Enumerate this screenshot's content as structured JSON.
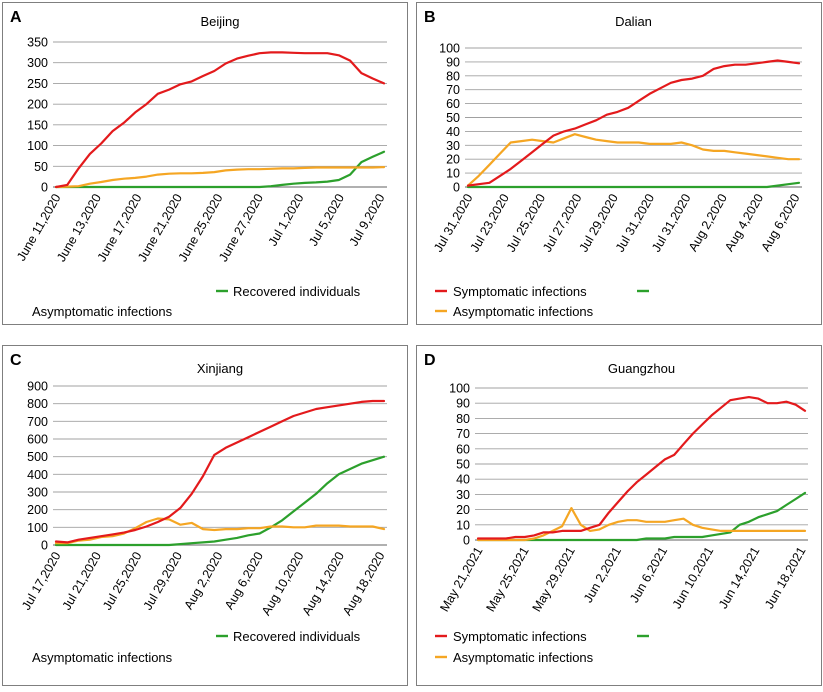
{
  "legend_text": {
    "symptomatic": "Symptomatic infections",
    "asymptomatic": "Asymptomatic infections",
    "recovered": "Recovered  individuals"
  },
  "colors": {
    "symptomatic": "#e31a1c",
    "asymptomatic": "#f5a623",
    "recovered": "#2ca02c",
    "grid": "#a0a0a0",
    "border": "#7f7f7f"
  },
  "chart_data": [
    {
      "type": "line",
      "panel_label": "A",
      "title": "Beijing",
      "ylim": [
        0,
        350
      ],
      "yticks": [
        "0",
        "50",
        "100",
        "150",
        "200",
        "250",
        "300",
        "350"
      ],
      "xtick_labels": [
        "June 11,2020",
        "June 13,2020",
        "June 17,2020",
        "June 21,2020",
        "June 25,2020",
        "June 27,2020",
        "Jul 1,2020",
        "Jul 5,2020",
        "Jul 9,2020"
      ],
      "series": [
        {
          "name": "Symptomatic infections",
          "key": "symptomatic",
          "values": [
            0,
            5,
            45,
            80,
            105,
            135,
            155,
            180,
            200,
            225,
            235,
            248,
            255,
            268,
            280,
            298,
            310,
            317,
            323,
            325,
            325,
            324,
            323,
            323,
            323,
            318,
            305,
            275,
            262,
            250
          ]
        },
        {
          "name": "Asymptomatic infections",
          "key": "asymptomatic",
          "values": [
            0,
            1,
            2,
            8,
            12,
            17,
            20,
            22,
            25,
            30,
            32,
            33,
            33,
            34,
            36,
            40,
            42,
            43,
            43,
            44,
            45,
            45,
            46,
            47,
            47,
            47,
            47,
            47,
            47,
            48
          ]
        },
        {
          "name": "Recovered  individuals",
          "key": "recovered",
          "values": [
            0,
            0,
            0,
            0,
            0,
            0,
            0,
            0,
            0,
            0,
            0,
            0,
            0,
            0,
            0,
            0,
            0,
            0,
            0,
            2,
            5,
            8,
            10,
            11,
            13,
            17,
            30,
            60,
            73,
            85
          ]
        }
      ]
    },
    {
      "type": "line",
      "panel_label": "B",
      "title": "Dalian",
      "ylim": [
        0,
        100
      ],
      "yticks": [
        "0",
        "10",
        "20",
        "30",
        "40",
        "50",
        "60",
        "70",
        "80",
        "90",
        "100"
      ],
      "xtick_labels": [
        "Jul 31,2020",
        "Jul 23,2020",
        "Jul 25,2020",
        "Jul 27,2020",
        "Jul 29,2020",
        "Jul 31,2020",
        "Jul 31,2020",
        "Aug 2,2020",
        "Aug 4,2020",
        "Aug 6,2020"
      ],
      "series": [
        {
          "name": "Symptomatic infections",
          "key": "symptomatic",
          "values": [
            1,
            2,
            3,
            8,
            13,
            19,
            25,
            31,
            37,
            40,
            42,
            45,
            48,
            52,
            54,
            57,
            62,
            67,
            71,
            75,
            77,
            78,
            80,
            85,
            87,
            88,
            88,
            89,
            90,
            91,
            90,
            89
          ]
        },
        {
          "name": "Asymptomatic infections",
          "key": "asymptomatic",
          "values": [
            1,
            8,
            16,
            24,
            32,
            33,
            34,
            33,
            32,
            35,
            38,
            36,
            34,
            33,
            32,
            32,
            32,
            31,
            31,
            31,
            32,
            30,
            27,
            26,
            26,
            25,
            24,
            23,
            22,
            21,
            20,
            20
          ]
        },
        {
          "name": "Recovered  individuals",
          "key": "recovered",
          "values": [
            0,
            0,
            0,
            0,
            0,
            0,
            0,
            0,
            0,
            0,
            0,
            0,
            0,
            0,
            0,
            0,
            0,
            0,
            0,
            0,
            0,
            0,
            0,
            0,
            0,
            0,
            0,
            0,
            0,
            1,
            2,
            3
          ]
        }
      ]
    },
    {
      "type": "line",
      "panel_label": "C",
      "title": "Xinjiang",
      "ylim": [
        0,
        900
      ],
      "yticks": [
        "0",
        "100",
        "200",
        "300",
        "400",
        "500",
        "600",
        "700",
        "800",
        "900"
      ],
      "xtick_labels": [
        "Jul 17,2020",
        "Jul 21,2020",
        "Jul 25,2020",
        "Jul 29,2020",
        "Aug 2,2020",
        "Aug 6,2020",
        "Aug 10,2020",
        "Aug 14,2020",
        "Aug 18,2020"
      ],
      "series": [
        {
          "name": "Symptomatic infections",
          "key": "symptomatic",
          "values": [
            20,
            15,
            30,
            40,
            50,
            60,
            70,
            85,
            105,
            130,
            160,
            210,
            290,
            390,
            510,
            550,
            580,
            610,
            640,
            670,
            700,
            730,
            750,
            770,
            780,
            790,
            800,
            810,
            815,
            815
          ]
        },
        {
          "name": "Asymptomatic infections",
          "key": "asymptomatic",
          "values": [
            10,
            10,
            25,
            30,
            45,
            50,
            65,
            95,
            130,
            150,
            145,
            115,
            125,
            90,
            85,
            90,
            90,
            95,
            95,
            105,
            105,
            100,
            100,
            110,
            110,
            110,
            105,
            105,
            105,
            90
          ]
        },
        {
          "name": "Recovered  individuals",
          "key": "recovered",
          "values": [
            0,
            0,
            0,
            0,
            0,
            0,
            0,
            0,
            0,
            0,
            0,
            5,
            10,
            15,
            20,
            30,
            40,
            55,
            65,
            100,
            140,
            190,
            240,
            290,
            350,
            400,
            430,
            460,
            480,
            500
          ]
        }
      ]
    },
    {
      "type": "line",
      "panel_label": "D",
      "title": "Guangzhou",
      "ylim": [
        0,
        100
      ],
      "yticks": [
        "0",
        "10",
        "20",
        "30",
        "40",
        "50",
        "60",
        "70",
        "80",
        "90",
        "100"
      ],
      "xtick_labels": [
        "May 21,2021",
        "May 25,2021",
        "May 29,2021",
        "Jun 2,2021",
        "Jun 6,2021",
        "Jun 10,2021",
        "Jun 14,2021",
        "Jun 18,2021"
      ],
      "series": [
        {
          "name": "Symptomatic infections",
          "key": "symptomatic",
          "values": [
            1,
            1,
            1,
            1,
            2,
            2,
            3,
            5,
            5,
            6,
            6,
            6,
            8,
            10,
            18,
            25,
            32,
            38,
            43,
            48,
            53,
            56,
            63,
            70,
            76,
            82,
            87,
            92,
            93,
            94,
            93,
            90,
            90,
            91,
            89,
            85
          ]
        },
        {
          "name": "Asymptomatic infections",
          "key": "asymptomatic",
          "values": [
            0,
            0,
            0,
            0,
            0,
            0,
            1,
            3,
            6,
            9,
            21,
            10,
            6,
            7,
            10,
            12,
            13,
            13,
            12,
            12,
            12,
            13,
            14,
            10,
            8,
            7,
            6,
            6,
            6,
            6,
            6,
            6,
            6,
            6,
            6,
            6
          ]
        },
        {
          "name": "Recovered  individuals",
          "key": "recovered",
          "values": [
            0,
            0,
            0,
            0,
            0,
            0,
            0,
            0,
            0,
            0,
            0,
            0,
            0,
            0,
            0,
            0,
            0,
            0,
            1,
            1,
            1,
            2,
            2,
            2,
            2,
            3,
            4,
            5,
            10,
            12,
            15,
            17,
            19,
            23,
            27,
            31
          ]
        }
      ]
    }
  ]
}
